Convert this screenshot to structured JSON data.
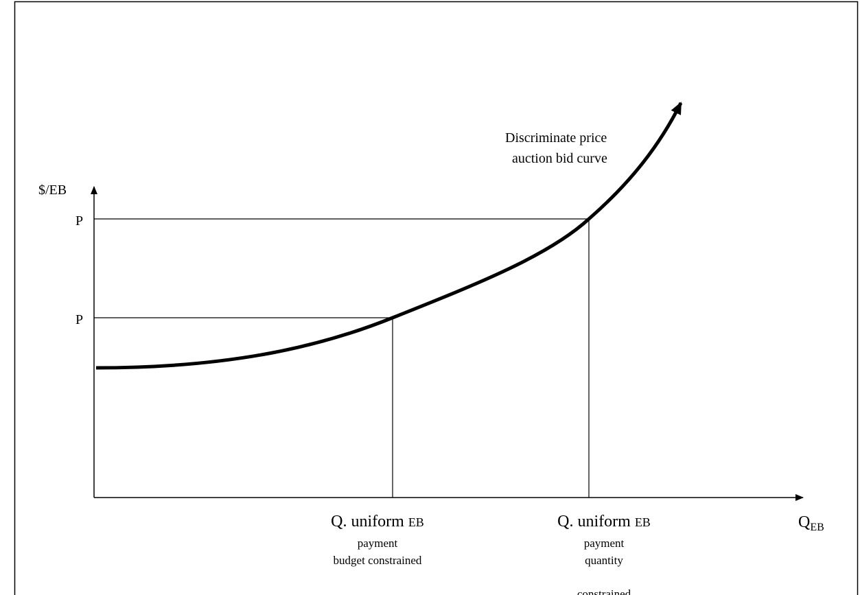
{
  "curve_label": [
    "Discriminate price",
    "auction bid curve"
  ],
  "y_axis_label": "$/EB",
  "x_axis_label": {
    "main": "Q",
    "sub": "EB"
  },
  "price_labels": [
    "P",
    "P"
  ],
  "quantity_labels": [
    {
      "main": "Q. uniform ",
      "sub": "EB",
      "lines": [
        "payment",
        "budget constrained"
      ]
    },
    {
      "main": "Q. uniform ",
      "sub": "EB",
      "lines": [
        "payment",
        "quantity",
        "constrained"
      ]
    }
  ]
}
